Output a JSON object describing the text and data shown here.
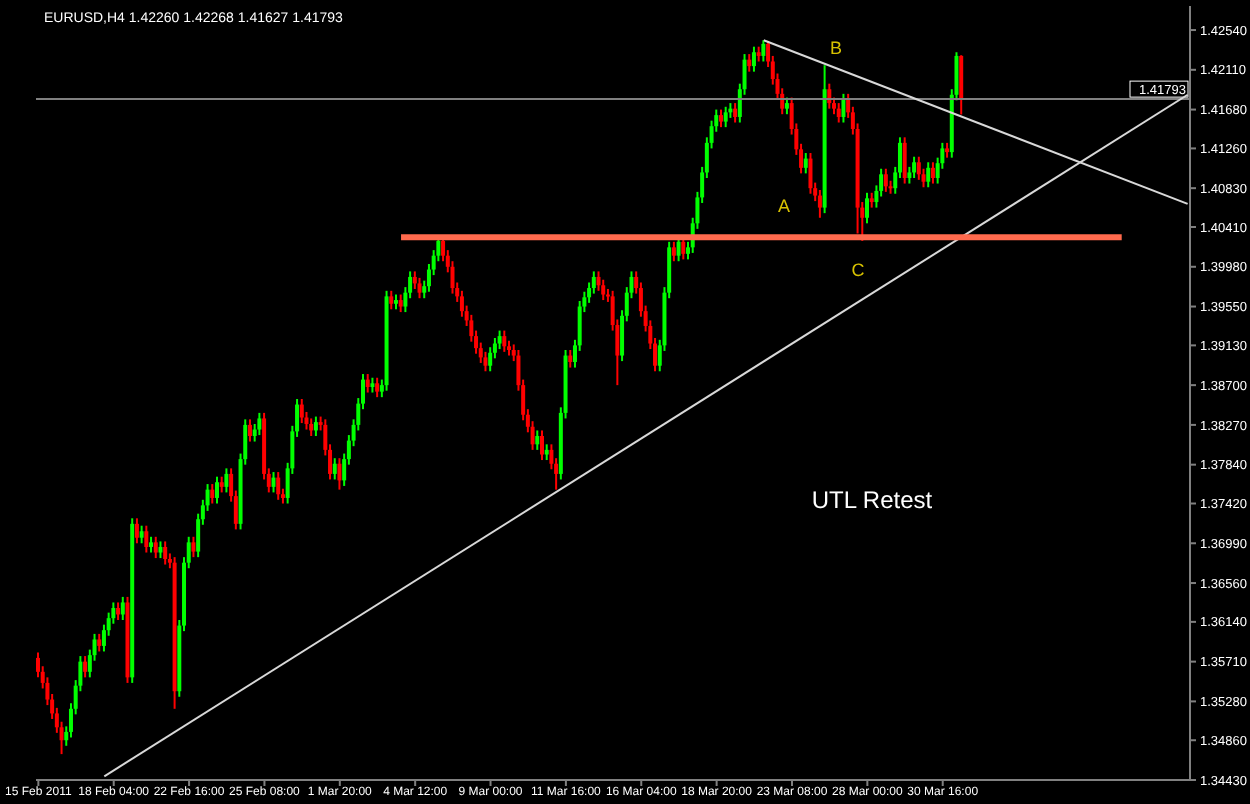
{
  "chart_data": {
    "type": "candlestick",
    "title": "EURUSD,H4  1.42260 1.42268 1.41627 1.41793",
    "categories": [
      "15 Feb 2011",
      null,
      null,
      null,
      null,
      null,
      null,
      null,
      null,
      null,
      null,
      null,
      null,
      null,
      null,
      null,
      "18 Feb 04:00",
      null,
      null,
      null,
      null,
      null,
      null,
      null,
      null,
      null,
      null,
      null,
      null,
      null,
      null,
      null,
      "22 Feb 16:00",
      null,
      null,
      null,
      null,
      null,
      null,
      null,
      null,
      null,
      null,
      null,
      null,
      null,
      null,
      null,
      "25 Feb 08:00",
      null,
      null,
      null,
      null,
      null,
      null,
      null,
      null,
      null,
      null,
      null,
      null,
      null,
      null,
      null,
      "1 Mar 20:00",
      null,
      null,
      null,
      null,
      null,
      null,
      null,
      null,
      null,
      null,
      null,
      null,
      null,
      null,
      null,
      "4 Mar 12:00",
      null,
      null,
      null,
      null,
      null,
      null,
      null,
      null,
      null,
      null,
      null,
      null,
      null,
      null,
      null,
      "9 Mar 00:00",
      null,
      null,
      null,
      null,
      null,
      null,
      null,
      null,
      null,
      null,
      null,
      null,
      null,
      null,
      null,
      "11 Mar 16:00",
      null,
      null,
      null,
      null,
      null,
      null,
      null,
      null,
      null,
      null,
      null,
      null,
      null,
      null,
      null,
      "16 Mar 04:00",
      null,
      null,
      null,
      null,
      null,
      null,
      null,
      null,
      null,
      null,
      null,
      null,
      null,
      null,
      null,
      "18 Mar 20:00",
      null,
      null,
      null,
      null,
      null,
      null,
      null,
      null,
      null,
      null,
      null,
      null,
      null,
      null,
      null,
      "23 Mar 08:00",
      null,
      null,
      null,
      null,
      null,
      null,
      null,
      null,
      null,
      null,
      null,
      null,
      null,
      null,
      null,
      "28 Mar 00:00",
      null,
      null,
      null,
      null,
      null,
      null,
      null,
      null,
      null,
      null,
      null,
      null,
      null,
      null,
      null,
      "30 Mar 16:00",
      null,
      null,
      null,
      null,
      null,
      null,
      null,
      null,
      null,
      null,
      null,
      null,
      null,
      null,
      null,
      null,
      null,
      null,
      null,
      null,
      null,
      null,
      null,
      null,
      null,
      null,
      null,
      null,
      null,
      null,
      null,
      null,
      null,
      null,
      null,
      null,
      null,
      null,
      null,
      null,
      null,
      null,
      null,
      null,
      null,
      null,
      null,
      null,
      null,
      null,
      null,
      null
    ],
    "ohlc": [
      [
        1.3575,
        1.3581,
        1.3554,
        1.356
      ],
      [
        1.356,
        1.3566,
        1.3542,
        1.3548
      ],
      [
        1.3548,
        1.3554,
        1.3524,
        1.353
      ],
      [
        1.353,
        1.3536,
        1.3509,
        1.3515
      ],
      [
        1.3515,
        1.3521,
        1.3494,
        1.35
      ],
      [
        1.35,
        1.3506,
        1.3471,
        1.3486
      ],
      [
        1.3486,
        1.3501,
        1.348,
        1.3495
      ],
      [
        1.3495,
        1.3526,
        1.3489,
        1.352
      ],
      [
        1.352,
        1.3551,
        1.3514,
        1.3545
      ],
      [
        1.3545,
        1.3577,
        1.3539,
        1.3571
      ],
      [
        1.3571,
        1.3577,
        1.3554,
        1.356
      ],
      [
        1.356,
        1.3584,
        1.3554,
        1.3578
      ],
      [
        1.3578,
        1.3601,
        1.3572,
        1.3595
      ],
      [
        1.3595,
        1.3601,
        1.3582,
        1.3588
      ],
      [
        1.3588,
        1.3611,
        1.3582,
        1.3605
      ],
      [
        1.3605,
        1.3624,
        1.3599,
        1.3618
      ],
      [
        1.3618,
        1.3635,
        1.3612,
        1.3629
      ],
      [
        1.3629,
        1.3635,
        1.3616,
        1.3622
      ],
      [
        1.3622,
        1.3641,
        1.3616,
        1.3635
      ],
      [
        1.3635,
        1.3641,
        1.3548,
        1.3554
      ],
      [
        1.3554,
        1.3726,
        1.3548,
        1.372
      ],
      [
        1.372,
        1.3726,
        1.3699,
        1.3705
      ],
      [
        1.3705,
        1.3718,
        1.3699,
        1.3712
      ],
      [
        1.3712,
        1.3718,
        1.3689,
        1.3695
      ],
      [
        1.3695,
        1.3706,
        1.3689,
        1.37
      ],
      [
        1.37,
        1.3706,
        1.3683,
        1.3689
      ],
      [
        1.3689,
        1.3701,
        1.3683,
        1.3695
      ],
      [
        1.3695,
        1.3701,
        1.3676,
        1.3682
      ],
      [
        1.3682,
        1.3688,
        1.3672,
        1.3678
      ],
      [
        1.3678,
        1.3684,
        1.352,
        1.3539
      ],
      [
        1.3539,
        1.3616,
        1.3533,
        1.361
      ],
      [
        1.361,
        1.3684,
        1.3604,
        1.3678
      ],
      [
        1.3678,
        1.3706,
        1.3672,
        1.37
      ],
      [
        1.37,
        1.3706,
        1.3684,
        1.369
      ],
      [
        1.369,
        1.3731,
        1.3684,
        1.3725
      ],
      [
        1.3725,
        1.3746,
        1.3719,
        1.374
      ],
      [
        1.374,
        1.3763,
        1.3734,
        1.3757
      ],
      [
        1.3757,
        1.3763,
        1.3742,
        1.3748
      ],
      [
        1.3748,
        1.3771,
        1.3742,
        1.3765
      ],
      [
        1.3765,
        1.3771,
        1.3754,
        1.376
      ],
      [
        1.376,
        1.378,
        1.3754,
        1.3774
      ],
      [
        1.3774,
        1.378,
        1.3744,
        1.375
      ],
      [
        1.375,
        1.3756,
        1.3714,
        1.372
      ],
      [
        1.372,
        1.3796,
        1.3714,
        1.379
      ],
      [
        1.379,
        1.3833,
        1.3784,
        1.3827
      ],
      [
        1.3827,
        1.3833,
        1.3809,
        1.3815
      ],
      [
        1.3815,
        1.3828,
        1.3809,
        1.3822
      ],
      [
        1.3822,
        1.384,
        1.3816,
        1.3834
      ],
      [
        1.3834,
        1.384,
        1.3768,
        1.3774
      ],
      [
        1.3774,
        1.378,
        1.3754,
        1.376
      ],
      [
        1.376,
        1.3776,
        1.3754,
        1.377
      ],
      [
        1.377,
        1.3776,
        1.3746,
        1.3752
      ],
      [
        1.3752,
        1.3758,
        1.3742,
        1.3748
      ],
      [
        1.3748,
        1.3786,
        1.3742,
        1.378
      ],
      [
        1.378,
        1.3826,
        1.3774,
        1.382
      ],
      [
        1.382,
        1.3855,
        1.3814,
        1.3849
      ],
      [
        1.3849,
        1.3855,
        1.3829,
        1.3835
      ],
      [
        1.3835,
        1.3841,
        1.3822,
        1.3828
      ],
      [
        1.3828,
        1.3834,
        1.3815,
        1.3821
      ],
      [
        1.3821,
        1.3836,
        1.3815,
        1.383
      ],
      [
        1.383,
        1.3836,
        1.3821,
        1.3827
      ],
      [
        1.3827,
        1.3833,
        1.3794,
        1.38
      ],
      [
        1.38,
        1.3806,
        1.3768,
        1.3774
      ],
      [
        1.3774,
        1.3791,
        1.3768,
        1.3785
      ],
      [
        1.3785,
        1.3791,
        1.3757,
        1.3767
      ],
      [
        1.3767,
        1.3796,
        1.3761,
        1.379
      ],
      [
        1.379,
        1.3816,
        1.3784,
        1.381
      ],
      [
        1.381,
        1.3833,
        1.3804,
        1.3827
      ],
      [
        1.3827,
        1.3856,
        1.3821,
        1.385
      ],
      [
        1.385,
        1.3882,
        1.3844,
        1.3876
      ],
      [
        1.3876,
        1.3882,
        1.3862,
        1.3868
      ],
      [
        1.3868,
        1.3878,
        1.3862,
        1.3872
      ],
      [
        1.3872,
        1.3878,
        1.3857,
        1.3863
      ],
      [
        1.3863,
        1.3876,
        1.3857,
        1.387
      ],
      [
        1.387,
        1.3972,
        1.3864,
        1.3966
      ],
      [
        1.3966,
        1.3972,
        1.3952,
        1.3958
      ],
      [
        1.3958,
        1.3968,
        1.3952,
        1.3962
      ],
      [
        1.3962,
        1.3968,
        1.3949,
        1.3955
      ],
      [
        1.3955,
        1.3976,
        1.3949,
        1.397
      ],
      [
        1.397,
        1.3993,
        1.3964,
        1.3987
      ],
      [
        1.3987,
        1.3993,
        1.3974,
        1.398
      ],
      [
        1.398,
        1.3986,
        1.3964,
        1.397
      ],
      [
        1.397,
        1.3983,
        1.3964,
        1.3977
      ],
      [
        1.3977,
        1.4001,
        1.3971,
        1.3995
      ],
      [
        1.3995,
        1.4016,
        1.3989,
        1.401
      ],
      [
        1.401,
        1.4032,
        1.4004,
        1.4026
      ],
      [
        1.4026,
        1.403,
        1.4004,
        1.401
      ],
      [
        1.401,
        1.4016,
        1.3992,
        1.3998
      ],
      [
        1.3998,
        1.4004,
        1.3969,
        1.3975
      ],
      [
        1.3975,
        1.3981,
        1.396,
        1.3966
      ],
      [
        1.3966,
        1.3972,
        1.3944,
        1.395
      ],
      [
        1.395,
        1.3956,
        1.3934,
        1.394
      ],
      [
        1.394,
        1.3946,
        1.3917,
        1.3923
      ],
      [
        1.3923,
        1.3929,
        1.3904,
        1.391
      ],
      [
        1.391,
        1.3916,
        1.3894,
        1.39
      ],
      [
        1.39,
        1.3906,
        1.3885,
        1.3891
      ],
      [
        1.3891,
        1.3911,
        1.3885,
        1.3905
      ],
      [
        1.3905,
        1.3921,
        1.3899,
        1.3915
      ],
      [
        1.3915,
        1.3929,
        1.3909,
        1.3923
      ],
      [
        1.3923,
        1.3929,
        1.3906,
        1.3912
      ],
      [
        1.3912,
        1.3918,
        1.3902,
        1.3908
      ],
      [
        1.3908,
        1.3914,
        1.3896,
        1.3902
      ],
      [
        1.3902,
        1.3908,
        1.3864,
        1.387
      ],
      [
        1.387,
        1.3876,
        1.3832,
        1.3838
      ],
      [
        1.3838,
        1.3844,
        1.3819,
        1.3825
      ],
      [
        1.3825,
        1.3831,
        1.38,
        1.3806
      ],
      [
        1.3806,
        1.3821,
        1.38,
        1.3815
      ],
      [
        1.3815,
        1.3821,
        1.3789,
        1.3795
      ],
      [
        1.3795,
        1.3806,
        1.3789,
        1.38
      ],
      [
        1.38,
        1.3806,
        1.3779,
        1.3785
      ],
      [
        1.3785,
        1.3791,
        1.3757,
        1.3774
      ],
      [
        1.3774,
        1.3846,
        1.3768,
        1.384
      ],
      [
        1.384,
        1.3908,
        1.3834,
        1.3902
      ],
      [
        1.3902,
        1.3908,
        1.3889,
        1.3895
      ],
      [
        1.3895,
        1.3919,
        1.3889,
        1.3913
      ],
      [
        1.3913,
        1.3961,
        1.3907,
        1.3955
      ],
      [
        1.3955,
        1.3971,
        1.3949,
        1.3965
      ],
      [
        1.3965,
        1.3981,
        1.3959,
        1.3975
      ],
      [
        1.3975,
        1.3993,
        1.3969,
        1.3987
      ],
      [
        1.3987,
        1.3993,
        1.3972,
        1.3978
      ],
      [
        1.3978,
        1.3984,
        1.3962,
        1.3968
      ],
      [
        1.3968,
        1.3974,
        1.396,
        1.3966
      ],
      [
        1.3966,
        1.3972,
        1.3929,
        1.3935
      ],
      [
        1.3935,
        1.3941,
        1.387,
        1.3902
      ],
      [
        1.3902,
        1.3951,
        1.3896,
        1.3945
      ],
      [
        1.3945,
        1.3976,
        1.3939,
        1.397
      ],
      [
        1.397,
        1.3993,
        1.3964,
        1.3987
      ],
      [
        1.3987,
        1.3993,
        1.3969,
        1.3975
      ],
      [
        1.3975,
        1.3981,
        1.3944,
        1.395
      ],
      [
        1.395,
        1.3956,
        1.3928,
        1.3934
      ],
      [
        1.3934,
        1.394,
        1.3909,
        1.3915
      ],
      [
        1.3915,
        1.3921,
        1.3885,
        1.3891
      ],
      [
        1.3891,
        1.3919,
        1.3885,
        1.3913
      ],
      [
        1.3913,
        1.3976,
        1.3907,
        1.397
      ],
      [
        1.397,
        1.4025,
        1.3964,
        1.4019
      ],
      [
        1.4019,
        1.4025,
        1.4004,
        1.401
      ],
      [
        1.401,
        1.4031,
        1.4004,
        1.4025
      ],
      [
        1.4025,
        1.4031,
        1.4006,
        1.4012
      ],
      [
        1.4012,
        1.4025,
        1.4006,
        1.4019
      ],
      [
        1.4019,
        1.4051,
        1.4013,
        1.4045
      ],
      [
        1.4045,
        1.4079,
        1.4039,
        1.4073
      ],
      [
        1.4073,
        1.4106,
        1.4067,
        1.41
      ],
      [
        1.41,
        1.4138,
        1.4094,
        1.4132
      ],
      [
        1.4132,
        1.4156,
        1.4126,
        1.415
      ],
      [
        1.415,
        1.4168,
        1.4144,
        1.4162
      ],
      [
        1.4162,
        1.4168,
        1.4149,
        1.4155
      ],
      [
        1.4155,
        1.4171,
        1.4149,
        1.4165
      ],
      [
        1.4165,
        1.4175,
        1.4159,
        1.4169
      ],
      [
        1.4169,
        1.4175,
        1.4154,
        1.416
      ],
      [
        1.416,
        1.4196,
        1.4154,
        1.419
      ],
      [
        1.419,
        1.4228,
        1.4184,
        1.4222
      ],
      [
        1.4222,
        1.4228,
        1.4209,
        1.4215
      ],
      [
        1.4215,
        1.4236,
        1.4209,
        1.423
      ],
      [
        1.423,
        1.4236,
        1.422,
        1.4226
      ],
      [
        1.4226,
        1.4243,
        1.422,
        1.4239
      ],
      [
        1.4239,
        1.4242,
        1.4214,
        1.422
      ],
      [
        1.422,
        1.4226,
        1.4195,
        1.4201
      ],
      [
        1.4201,
        1.4207,
        1.4179,
        1.4185
      ],
      [
        1.4185,
        1.4191,
        1.4163,
        1.4169
      ],
      [
        1.4169,
        1.4181,
        1.4163,
        1.4175
      ],
      [
        1.4175,
        1.4181,
        1.4141,
        1.4147
      ],
      [
        1.4147,
        1.4153,
        1.4119,
        1.4125
      ],
      [
        1.4125,
        1.4131,
        1.4099,
        1.4105
      ],
      [
        1.4105,
        1.4121,
        1.4099,
        1.4115
      ],
      [
        1.4115,
        1.4121,
        1.4077,
        1.4083
      ],
      [
        1.4083,
        1.4089,
        1.4069,
        1.4075
      ],
      [
        1.4075,
        1.4081,
        1.4051,
        1.4062
      ],
      [
        1.4062,
        1.4216,
        1.4056,
        1.419
      ],
      [
        1.419,
        1.4196,
        1.4169,
        1.4175
      ],
      [
        1.4175,
        1.4181,
        1.4163,
        1.4169
      ],
      [
        1.4169,
        1.4175,
        1.4154,
        1.416
      ],
      [
        1.416,
        1.4185,
        1.4154,
        1.4179
      ],
      [
        1.4179,
        1.4185,
        1.4159,
        1.4165
      ],
      [
        1.4165,
        1.4171,
        1.4141,
        1.4147
      ],
      [
        1.4147,
        1.4153,
        1.4034,
        1.4062
      ],
      [
        1.4062,
        1.4068,
        1.4026,
        1.4051
      ],
      [
        1.4051,
        1.4078,
        1.4045,
        1.4072
      ],
      [
        1.4072,
        1.4078,
        1.4062,
        1.4068
      ],
      [
        1.4068,
        1.4086,
        1.4062,
        1.408
      ],
      [
        1.408,
        1.4104,
        1.4074,
        1.4098
      ],
      [
        1.4098,
        1.4104,
        1.4079,
        1.4085
      ],
      [
        1.4085,
        1.4091,
        1.4077,
        1.4083
      ],
      [
        1.4083,
        1.4106,
        1.4077,
        1.41
      ],
      [
        1.41,
        1.4138,
        1.4094,
        1.4132
      ],
      [
        1.4132,
        1.4138,
        1.4088,
        1.4094
      ],
      [
        1.4094,
        1.4106,
        1.4088,
        1.41
      ],
      [
        1.41,
        1.4117,
        1.4094,
        1.4111
      ],
      [
        1.4111,
        1.4117,
        1.4092,
        1.4098
      ],
      [
        1.4098,
        1.4104,
        1.4084,
        1.409
      ],
      [
        1.409,
        1.4111,
        1.4084,
        1.4105
      ],
      [
        1.4105,
        1.4111,
        1.4088,
        1.4094
      ],
      [
        1.4094,
        1.4116,
        1.4088,
        1.411
      ],
      [
        1.411,
        1.4132,
        1.4104,
        1.4126
      ],
      [
        1.4126,
        1.4132,
        1.4116,
        1.4122
      ],
      [
        1.4122,
        1.419,
        1.4116,
        1.4184
      ],
      [
        1.4184,
        1.423,
        1.4178,
        1.4226
      ],
      [
        1.4226,
        1.42268,
        1.41627,
        1.41793
      ],
      null,
      null,
      null,
      null,
      null,
      null,
      null,
      null,
      null,
      null,
      null,
      null,
      null,
      null,
      null,
      null,
      null,
      null,
      null,
      null,
      null,
      null,
      null,
      null,
      null,
      null,
      null,
      null,
      null,
      null,
      null,
      null,
      null,
      null,
      null,
      null,
      null,
      null,
      null,
      null,
      null,
      null,
      null,
      null,
      null,
      null,
      null,
      null
    ],
    "series": [
      {
        "type": "line",
        "color": "#d8d8d8",
        "values": [
          null,
          null,
          null,
          null,
          null,
          null,
          null,
          null,
          null,
          null,
          null,
          null,
          null,
          null,
          1.3447,
          null,
          null,
          null,
          null,
          null,
          null,
          null,
          null,
          null,
          null,
          null,
          null,
          null,
          null,
          null,
          null,
          null,
          null,
          null,
          null,
          null,
          null,
          null,
          null,
          null,
          null,
          null,
          null,
          null,
          null,
          null,
          null,
          null,
          null,
          null,
          null,
          null,
          null,
          null,
          null,
          null,
          null,
          null,
          null,
          null,
          null,
          null,
          null,
          null,
          null,
          null,
          null,
          null,
          null,
          null,
          null,
          null,
          null,
          null,
          null,
          null,
          null,
          null,
          null,
          null,
          null,
          null,
          null,
          null,
          null,
          null,
          null,
          null,
          null,
          null,
          null,
          null,
          null,
          null,
          null,
          null,
          null,
          null,
          null,
          null,
          null,
          null,
          null,
          null,
          null,
          null,
          null,
          null,
          null,
          null,
          null,
          null,
          null,
          null,
          null,
          null,
          null,
          null,
          null,
          null,
          null,
          null,
          null,
          null,
          null,
          null,
          null,
          null,
          null,
          null,
          null,
          null,
          null,
          null,
          null,
          null,
          null,
          null,
          null,
          null,
          null,
          null,
          null,
          null,
          null,
          null,
          null,
          null,
          null,
          null,
          null,
          null,
          null,
          null,
          null,
          null,
          null,
          null,
          null,
          null,
          null,
          null,
          null,
          null,
          null,
          null,
          null,
          null,
          null,
          null,
          null,
          null,
          null,
          null,
          null,
          null,
          null,
          null,
          null,
          null,
          null,
          null,
          null,
          null,
          null,
          null,
          null,
          null,
          null,
          null,
          null,
          null,
          null,
          null,
          null,
          null,
          null,
          null,
          null,
          null,
          null,
          null,
          null,
          null,
          null,
          null,
          null,
          null,
          null,
          null,
          null,
          null,
          null,
          null,
          null,
          null,
          null,
          null,
          null,
          null,
          null,
          null,
          null,
          null,
          null,
          null,
          null,
          null,
          null,
          null,
          null,
          null,
          null,
          null,
          null,
          null,
          null,
          null,
          null,
          null,
          null,
          null,
          null,
          null,
          1.4184
        ]
      },
      {
        "type": "line",
        "color": "#d8d8d8",
        "values": [
          null,
          null,
          null,
          null,
          null,
          null,
          null,
          null,
          null,
          null,
          null,
          null,
          null,
          null,
          null,
          null,
          null,
          null,
          null,
          null,
          null,
          null,
          null,
          null,
          null,
          null,
          null,
          null,
          null,
          null,
          null,
          null,
          null,
          null,
          null,
          null,
          null,
          null,
          null,
          null,
          null,
          null,
          null,
          null,
          null,
          null,
          null,
          null,
          null,
          null,
          null,
          null,
          null,
          null,
          null,
          null,
          null,
          null,
          null,
          null,
          null,
          null,
          null,
          null,
          null,
          null,
          null,
          null,
          null,
          null,
          null,
          null,
          null,
          null,
          null,
          null,
          null,
          null,
          null,
          null,
          null,
          null,
          null,
          null,
          null,
          null,
          null,
          null,
          null,
          null,
          null,
          null,
          null,
          null,
          null,
          null,
          null,
          null,
          null,
          null,
          null,
          null,
          null,
          null,
          null,
          null,
          null,
          null,
          null,
          null,
          null,
          null,
          null,
          null,
          null,
          null,
          null,
          null,
          null,
          null,
          null,
          null,
          null,
          null,
          null,
          null,
          null,
          null,
          null,
          null,
          null,
          null,
          null,
          null,
          null,
          null,
          null,
          null,
          null,
          null,
          null,
          null,
          null,
          null,
          null,
          null,
          null,
          null,
          null,
          null,
          null,
          null,
          null,
          null,
          1.4243,
          null,
          null,
          null,
          null,
          null,
          null,
          null,
          null,
          null,
          null,
          null,
          null,
          null,
          null,
          null,
          null,
          null,
          null,
          null,
          null,
          null,
          null,
          null,
          null,
          null,
          null,
          null,
          null,
          null,
          null,
          null,
          null,
          null,
          null,
          null,
          null,
          null,
          null,
          null,
          null,
          null,
          null,
          null,
          null,
          null,
          null,
          null,
          null,
          null,
          null,
          null,
          null,
          null,
          null,
          null,
          null,
          null,
          null,
          null,
          null,
          null,
          null,
          null,
          null,
          null,
          null,
          null,
          null,
          null,
          null,
          null,
          null,
          null,
          null,
          null,
          null,
          null,
          null,
          null,
          null,
          null,
          null,
          null,
          null,
          null,
          null,
          null,
          null,
          null,
          1.4066
        ]
      },
      {
        "type": "line",
        "color": "#ff6a4d",
        "values": [
          null,
          null,
          null,
          null,
          null,
          null,
          null,
          null,
          null,
          null,
          null,
          null,
          null,
          null,
          null,
          null,
          null,
          null,
          null,
          null,
          null,
          null,
          null,
          null,
          null,
          null,
          null,
          null,
          null,
          null,
          null,
          null,
          null,
          null,
          null,
          null,
          null,
          null,
          null,
          null,
          null,
          null,
          null,
          null,
          null,
          null,
          null,
          null,
          null,
          null,
          null,
          null,
          null,
          null,
          null,
          null,
          null,
          null,
          null,
          null,
          null,
          null,
          null,
          null,
          null,
          null,
          null,
          null,
          null,
          null,
          null,
          null,
          null,
          null,
          null,
          null,
          null,
          1.403,
          null,
          null,
          null,
          null,
          null,
          null,
          null,
          null,
          null,
          null,
          null,
          null,
          null,
          null,
          null,
          null,
          null,
          null,
          null,
          null,
          null,
          null,
          null,
          null,
          null,
          null,
          null,
          null,
          null,
          null,
          null,
          null,
          null,
          null,
          null,
          null,
          null,
          null,
          null,
          null,
          null,
          null,
          null,
          null,
          null,
          null,
          null,
          null,
          null,
          null,
          null,
          null,
          null,
          null,
          null,
          null,
          null,
          null,
          null,
          null,
          null,
          null,
          null,
          null,
          null,
          null,
          null,
          null,
          null,
          null,
          null,
          null,
          null,
          null,
          null,
          null,
          null,
          null,
          null,
          null,
          null,
          null,
          null,
          null,
          null,
          null,
          null,
          null,
          null,
          null,
          null,
          null,
          null,
          null,
          null,
          null,
          null,
          null,
          null,
          null,
          null,
          null,
          null,
          null,
          null,
          null,
          null,
          null,
          null,
          null,
          null,
          null,
          null,
          null,
          null,
          null,
          null,
          null,
          null,
          null,
          null,
          null,
          null,
          null,
          null,
          null,
          null,
          null,
          null,
          null,
          null,
          null,
          null,
          null,
          null,
          null,
          null,
          null,
          null,
          null,
          null,
          null,
          null,
          null,
          null,
          null,
          null,
          null,
          null,
          null,
          null,
          null,
          1.403,
          null,
          null,
          null,
          null,
          null,
          null,
          null,
          null,
          null,
          null,
          null,
          null,
          null,
          null
        ]
      }
    ],
    "ylim": [
      1.3443,
      1.428
    ],
    "yticks": [
      {
        "value": 1.4254,
        "label": "1.42540"
      },
      {
        "value": 1.4211,
        "label": "1.42110"
      },
      {
        "value": 1.4168,
        "label": "1.41680"
      },
      {
        "value": 1.4126,
        "label": "1.41260"
      },
      {
        "value": 1.4083,
        "label": "1.40830"
      },
      {
        "value": 1.4041,
        "label": "1.40410"
      },
      {
        "value": 1.3998,
        "label": "1.39980"
      },
      {
        "value": 1.3955,
        "label": "1.39550"
      },
      {
        "value": 1.3913,
        "label": "1.39130"
      },
      {
        "value": 1.387,
        "label": "1.38700"
      },
      {
        "value": 1.3827,
        "label": "1.38270"
      },
      {
        "value": 1.3784,
        "label": "1.37840"
      },
      {
        "value": 1.3742,
        "label": "1.37420"
      },
      {
        "value": 1.3699,
        "label": "1.36990"
      },
      {
        "value": 1.3656,
        "label": "1.36560"
      },
      {
        "value": 1.3614,
        "label": "1.36140"
      },
      {
        "value": 1.3571,
        "label": "1.35710"
      },
      {
        "value": 1.3528,
        "label": "1.35280"
      },
      {
        "value": 1.3486,
        "label": "1.34860"
      },
      {
        "value": 1.3443,
        "label": "1.34430"
      }
    ],
    "ref_lines": [
      {
        "axis": "y",
        "value": 1.41793,
        "label": "1.41793",
        "color": "#808080"
      }
    ],
    "annotations": [
      "A",
      "B",
      "C",
      "UTL Retest"
    ],
    "marker": "none",
    "grid": false
  }
}
